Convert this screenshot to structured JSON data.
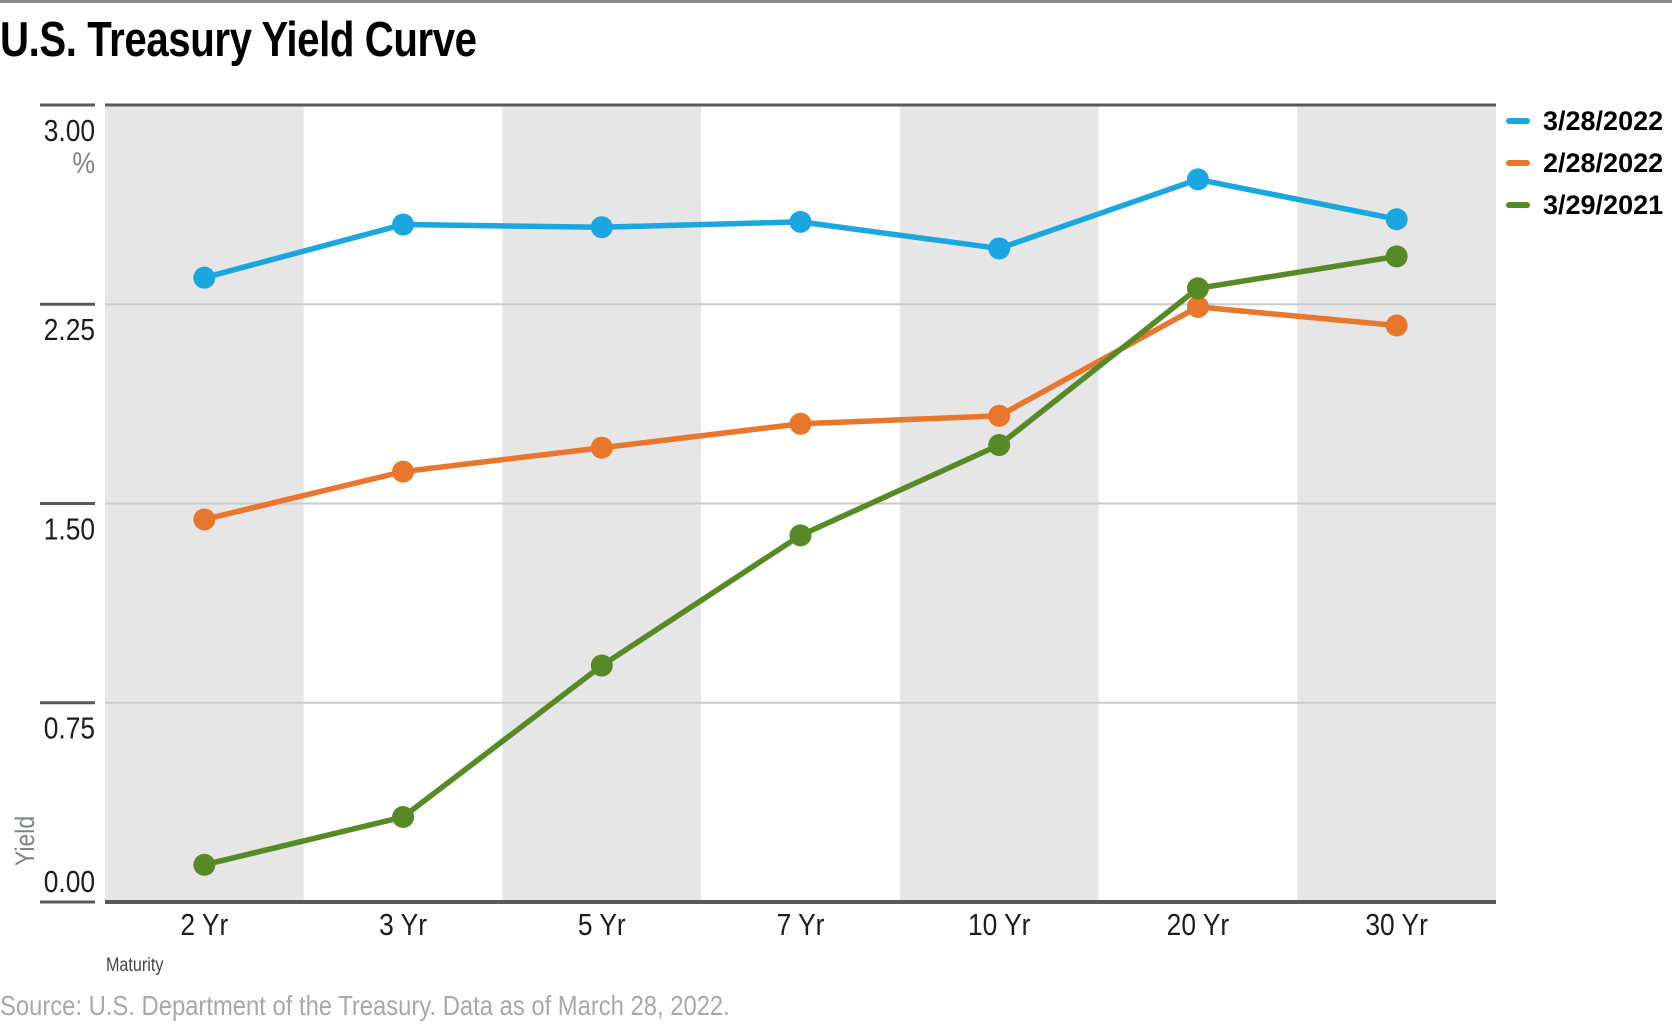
{
  "title": "U.S. Treasury Yield Curve",
  "source": "Source: U.S. Department of the Treasury. Data as of March 28, 2022.",
  "colors": {
    "top_rule": "#8A8B8E",
    "title_text": "#000000",
    "source_text": "#A6A8AB"
  },
  "chart_data": {
    "type": "line",
    "title": "U.S. Treasury Yield Curve",
    "xlabel": "Maturity",
    "ylabel": "Yield",
    "y_unit": "%",
    "categories": [
      "2 Yr",
      "3 Yr",
      "5 Yr",
      "7 Yr",
      "10 Yr",
      "20 Yr",
      "30 Yr"
    ],
    "ylim": [
      0,
      3
    ],
    "yticks": [
      {
        "value": 3.0,
        "label": "3.00"
      },
      {
        "value": 2.25,
        "label": "2.25"
      },
      {
        "value": 1.5,
        "label": "1.50"
      },
      {
        "value": 0.75,
        "label": "0.75"
      },
      {
        "value": 0.0,
        "label": "0.00"
      }
    ],
    "grid": "horizontal",
    "legend_position": "top-right",
    "series": [
      {
        "name": "3/28/2022",
        "color": "#1BA6E0",
        "values": [
          2.35,
          2.55,
          2.54,
          2.56,
          2.46,
          2.72,
          2.57
        ]
      },
      {
        "name": "2/28/2022",
        "color": "#E8762C",
        "values": [
          1.44,
          1.62,
          1.71,
          1.8,
          1.83,
          2.24,
          2.17
        ]
      },
      {
        "name": "3/29/2021",
        "color": "#578A26",
        "values": [
          0.14,
          0.32,
          0.89,
          1.38,
          1.72,
          2.31,
          2.43
        ]
      }
    ],
    "colors": {
      "band": "#E6E6E6",
      "axis": "#59595B",
      "gridline": "#CBCBCB",
      "tick_label": "#1D1D1B",
      "muted_text": "#808285"
    }
  }
}
